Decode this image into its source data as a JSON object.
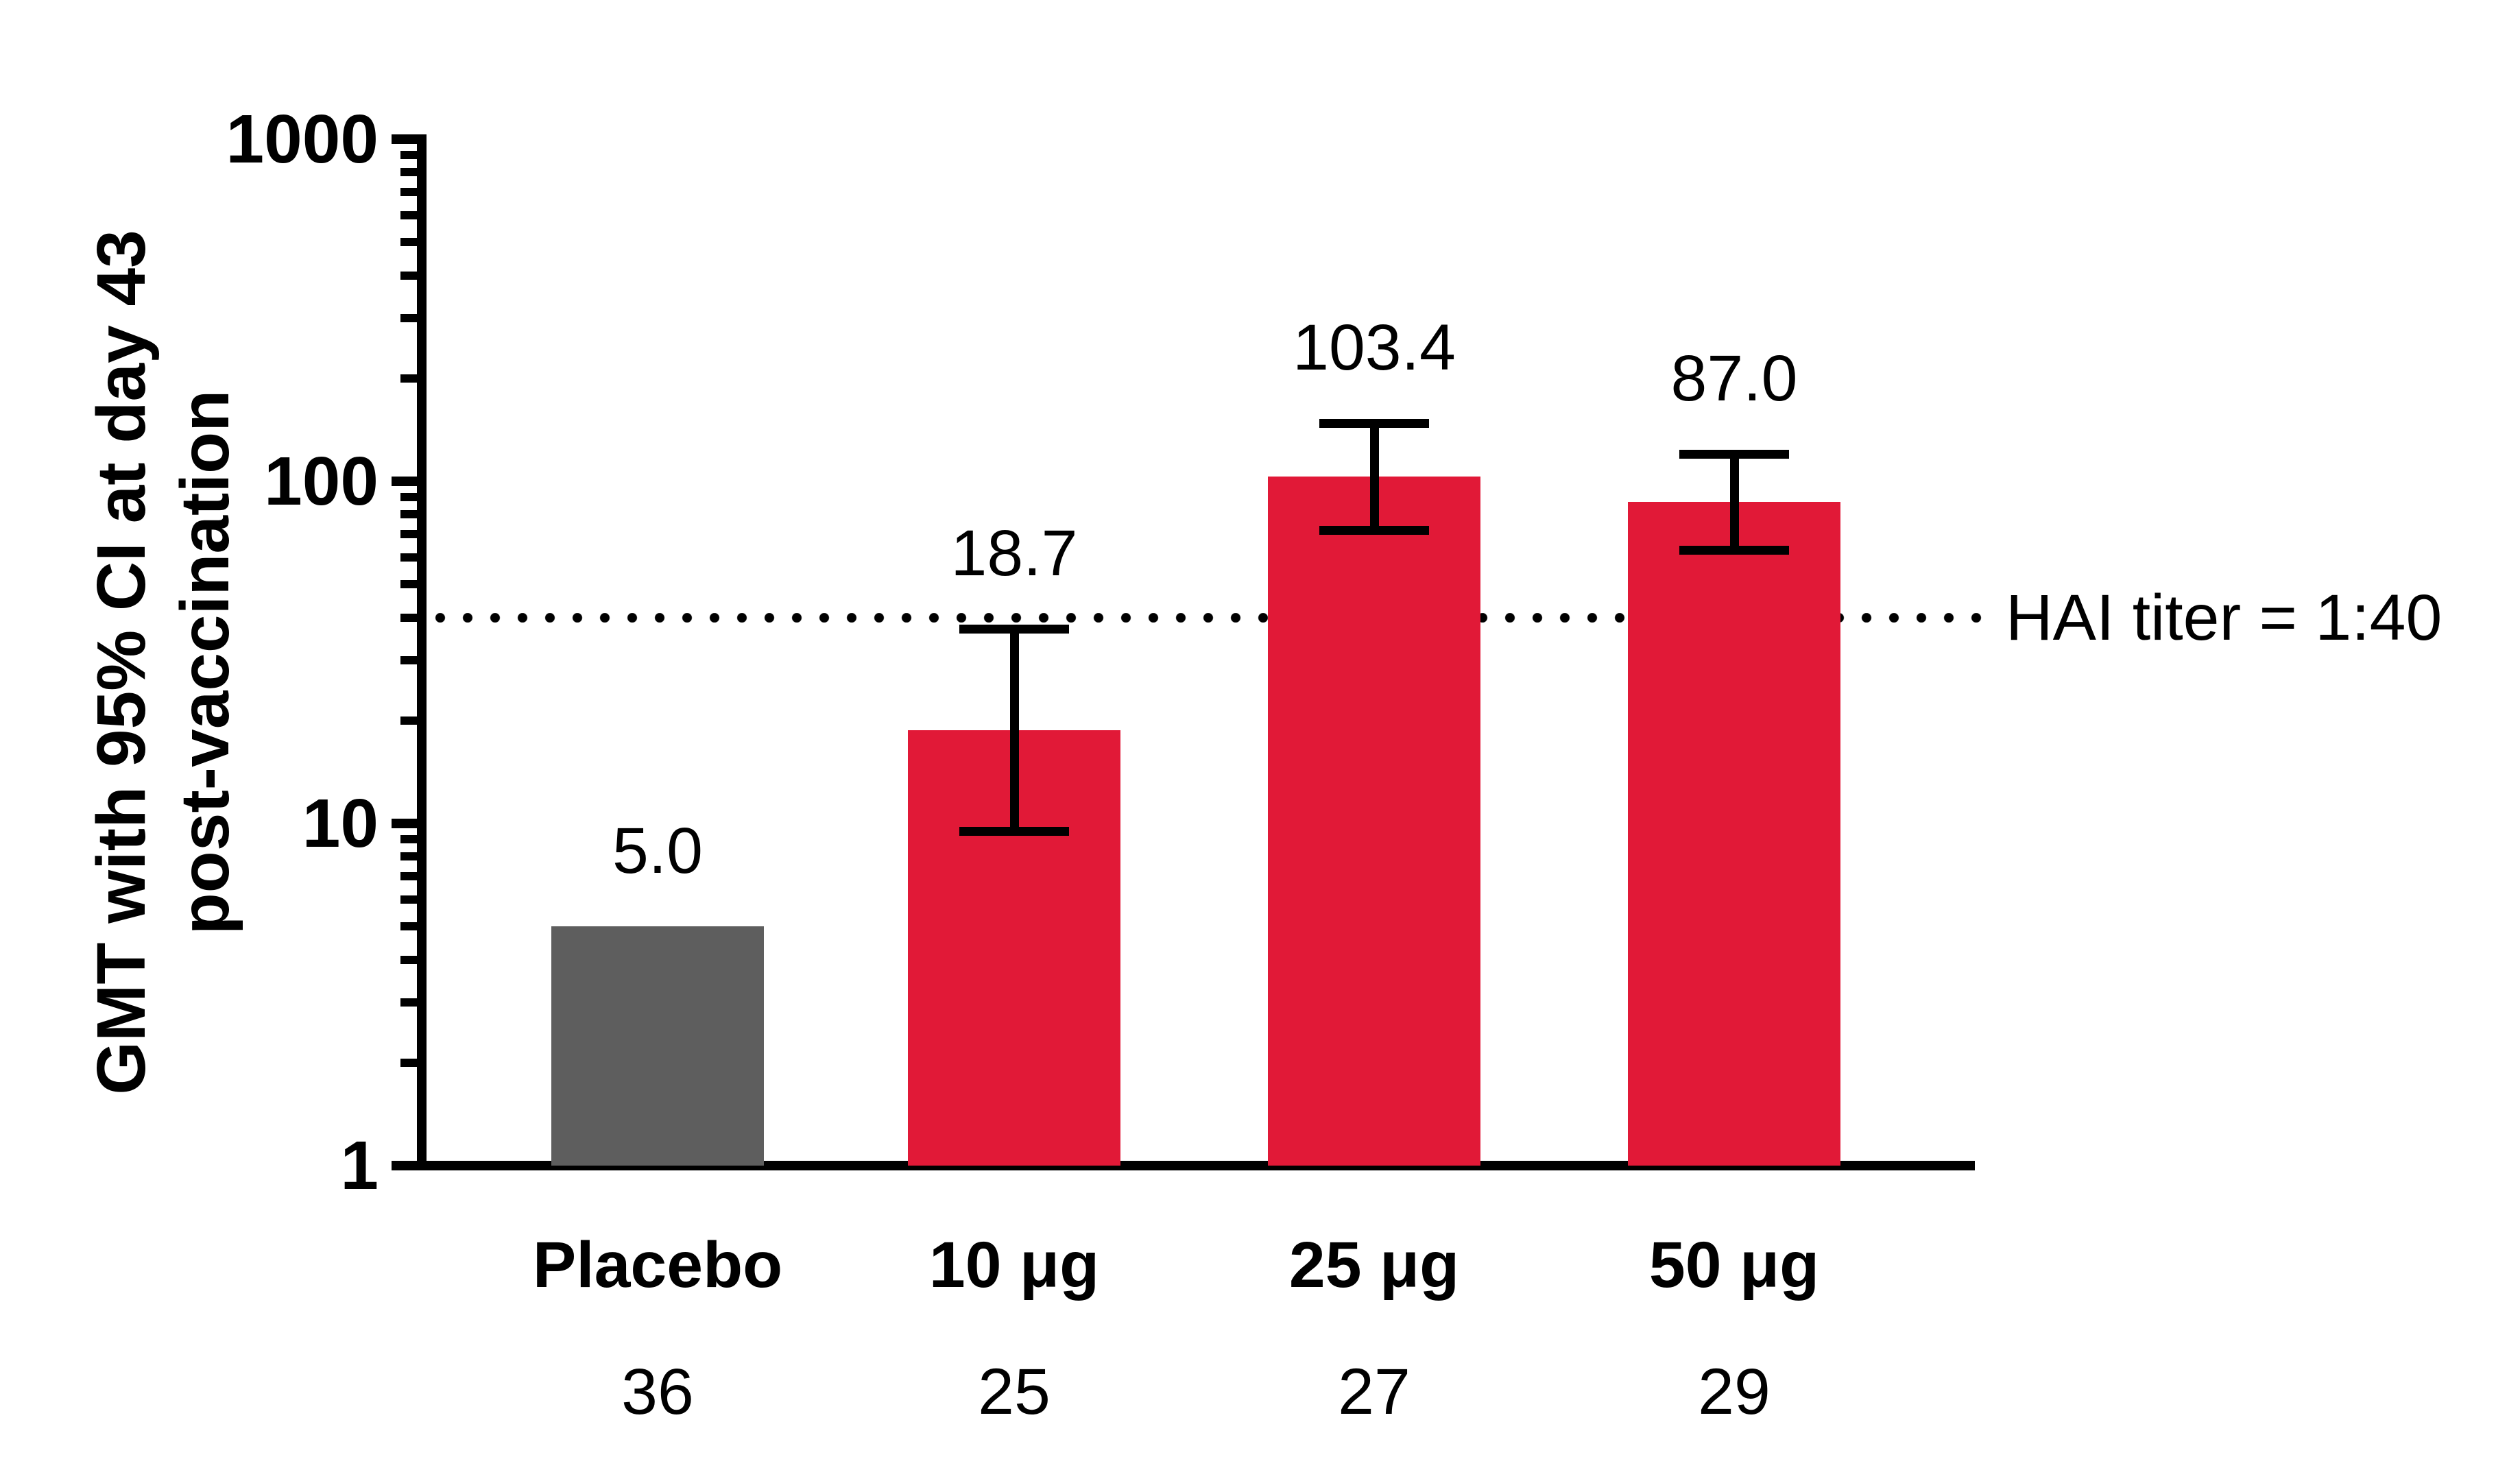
{
  "chart_data": {
    "type": "bar",
    "title": "",
    "ylabel_line1": "GMT with 95% CI at day 43",
    "ylabel_line2": "post-vaccination",
    "yscale": "log10",
    "ylim": [
      1,
      1000
    ],
    "ytick_values": [
      1,
      10,
      100,
      1000
    ],
    "ytick_labels": [
      "1",
      "10",
      "100",
      "1000"
    ],
    "grid": "off",
    "categories": [
      "Placebo",
      "10 μg",
      "25 μg",
      "50 μg"
    ],
    "sample_sizes": [
      "36",
      "25",
      "27",
      "29"
    ],
    "values": [
      5.0,
      18.7,
      103.4,
      87.0
    ],
    "value_labels": [
      "5.0",
      "18.7",
      "103.4",
      "87.0"
    ],
    "ci_low": [
      null,
      9.5,
      72,
      63
    ],
    "ci_high": [
      null,
      37,
      148,
      120
    ],
    "reference_line": {
      "value": 40,
      "label": "HAI titer = 1:40"
    },
    "bar_colors": [
      "#5E5E5E",
      "#E11937",
      "#E11937",
      "#E11937"
    ],
    "axis_color": "#000000",
    "background_color": "#FFFFFF"
  }
}
